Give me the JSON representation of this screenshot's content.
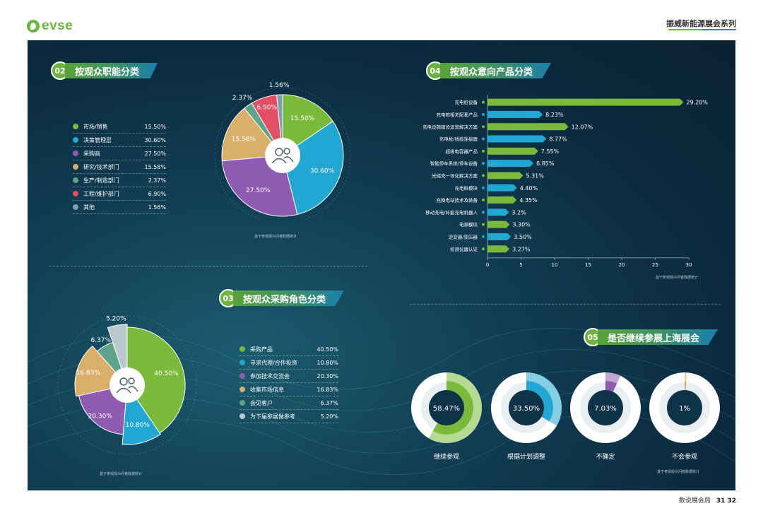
{
  "header": {
    "logo_text": "evse",
    "series": "振威新能源展会系列"
  },
  "footer": {
    "label": "数说展会局",
    "pages": "31 32"
  },
  "sections": {
    "s02": {
      "num": "02",
      "title": "按观众职能分类"
    },
    "s03": {
      "num": "03",
      "title": "按观众采购角色分类"
    },
    "s04": {
      "num": "04",
      "title": "按观众意向产品分类"
    },
    "s05": {
      "num": "05",
      "title": "是否继续参展上海展会"
    }
  },
  "note": "基于参观观众问卷数据统计",
  "chart_data": [
    {
      "type": "pie",
      "id": "function",
      "categories": [
        "市场/销售",
        "决策管理层",
        "采购商",
        "研究/技术部门",
        "生产/制造部门",
        "工程/维护部门",
        "其他"
      ],
      "values": [
        15.5,
        30.6,
        27.5,
        15.58,
        2.37,
        6.9,
        1.56
      ],
      "labels": [
        "15.50%",
        "30.60%",
        "27.50%",
        "15.58%",
        "2.37%",
        "6.90%",
        "1.56%"
      ],
      "colors": [
        "#7ab93a",
        "#22a6d2",
        "#8e5bb0",
        "#d8ae6a",
        "#5fa38a",
        "#e04f63",
        "#7e9fb0"
      ]
    },
    {
      "type": "pie",
      "id": "role",
      "categories": [
        "采购产品",
        "寻求代理/合作投资",
        "参加技术交流会",
        "收集市场信息",
        "会见客户",
        "为下届参展做参考"
      ],
      "values": [
        40.5,
        10.8,
        20.3,
        16.83,
        6.37,
        5.2
      ],
      "labels": [
        "40.50%",
        "10.80%",
        "20.30%",
        "16.83%",
        "6.37%",
        "5.20%"
      ],
      "colors": [
        "#7ab93a",
        "#22a6d2",
        "#8e5bb0",
        "#d8ae6a",
        "#5fa38a",
        "#b9c8cc"
      ]
    },
    {
      "type": "bar",
      "id": "product",
      "orientation": "horizontal",
      "categories": [
        "充电桩设备",
        "充电桩相关配套产品",
        "充电设施建设运营解决方案",
        "充电枪/线缆连接器",
        "超级电容器产品",
        "智能停车系统/停车设备",
        "光储充一体化解决方案",
        "充电桩模块",
        "充换电站技术及装备",
        "移动充电/补能充电机器人",
        "电源模块",
        "逆变器/变压器",
        "检测仪器认证"
      ],
      "values": [
        29.2,
        8.23,
        12.07,
        8.77,
        7.55,
        6.85,
        5.31,
        4.4,
        4.35,
        3.2,
        3.3,
        3.5,
        3.27
      ],
      "labels": [
        "29.20%",
        "8.23%",
        "12.07%",
        "8.77%",
        "7.55%",
        "6.85%",
        "5.31%",
        "4.40%",
        "4.35%",
        "3.2%",
        "3.30%",
        "3.50%",
        "3.27%"
      ],
      "colors": [
        "#7ab93a",
        "#22a6d2",
        "#7ab93a",
        "#22a6d2",
        "#7ab93a",
        "#22a6d2",
        "#7ab93a",
        "#22a6d2",
        "#7ab93a",
        "#22a6d2",
        "#7ab93a",
        "#22a6d2",
        "#7ab93a"
      ],
      "xticks": [
        "0",
        "5",
        "10",
        "15",
        "20",
        "25",
        "30"
      ],
      "xlim": [
        0,
        30
      ]
    },
    {
      "type": "pie",
      "id": "continue",
      "categories": [
        "继续参观",
        "根据计划调整",
        "不确定",
        "不会参观"
      ],
      "values": [
        58.47,
        33.5,
        7.03,
        1
      ],
      "labels": [
        "58.47%",
        "33.50%",
        "7.03%",
        "1%"
      ],
      "colors": [
        "#7ab93a",
        "#22a6d2",
        "#8e5bb0",
        "#d8ae6a"
      ]
    }
  ]
}
